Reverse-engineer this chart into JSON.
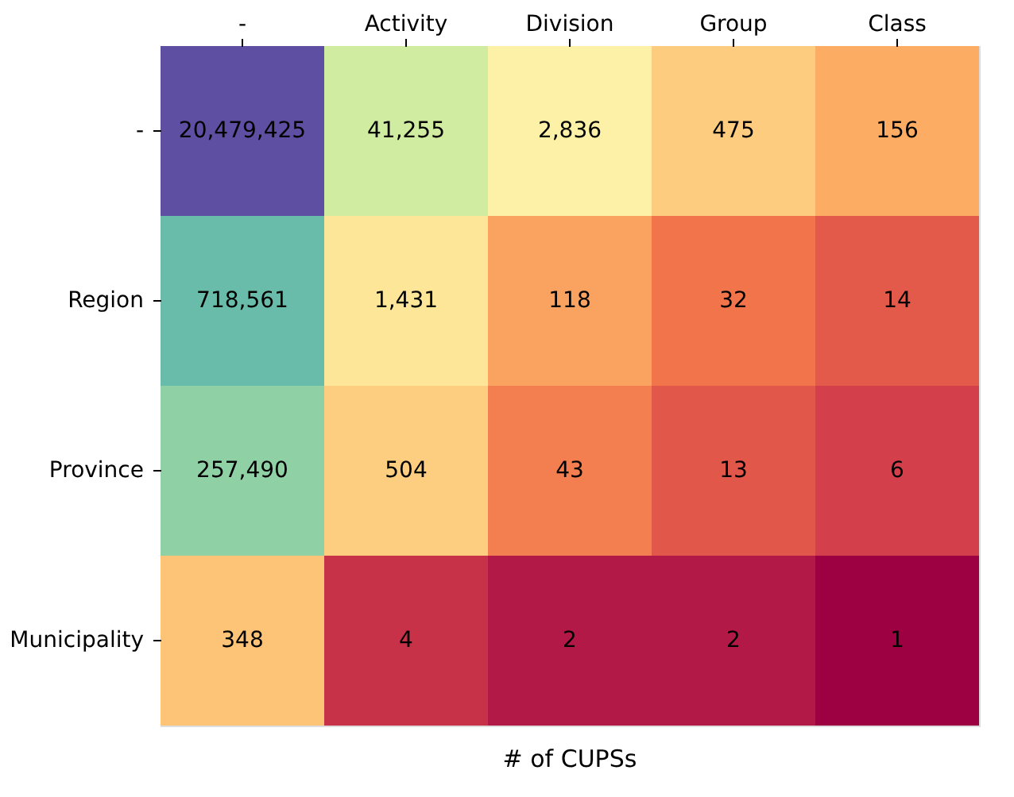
{
  "chart_data": {
    "type": "heatmap",
    "xlabel": "# of CUPSs",
    "categories": [
      "-",
      "Activity",
      "Division",
      "Group",
      "Class"
    ],
    "y_categories": [
      "-",
      "Region",
      "Province",
      "Municipality"
    ],
    "cells": [
      [
        20479425,
        41255,
        2836,
        475,
        156
      ],
      [
        718561,
        1431,
        118,
        32,
        14
      ],
      [
        257490,
        504,
        43,
        13,
        6
      ],
      [
        348,
        4,
        2,
        2,
        1
      ]
    ],
    "cell_labels": [
      [
        "20,479,425",
        "41,255",
        "2,836",
        "475",
        "156"
      ],
      [
        "718,561",
        "1,431",
        "118",
        "32",
        "14"
      ],
      [
        "257,490",
        "504",
        "43",
        "13",
        "6"
      ],
      [
        "348",
        "4",
        "2",
        "2",
        "1"
      ]
    ],
    "log": "c",
    "grid": false,
    "legend": false
  }
}
